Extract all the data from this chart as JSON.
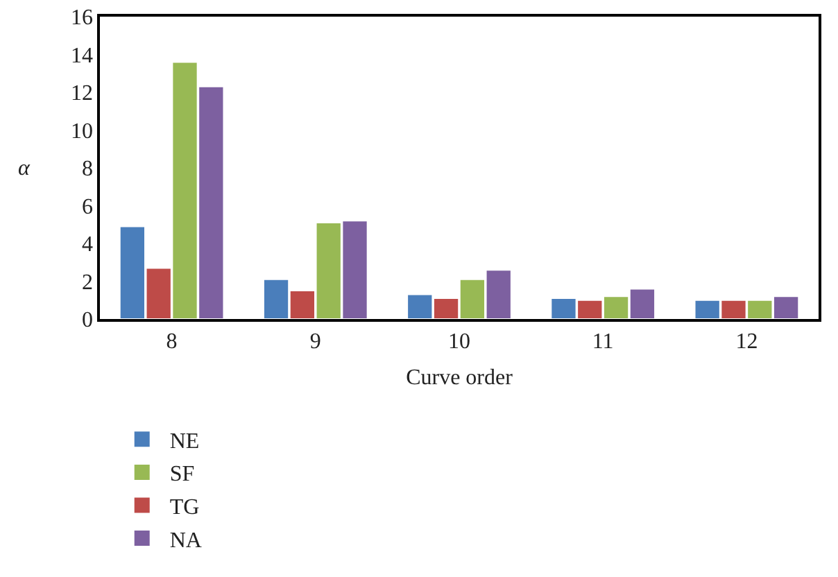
{
  "chart_data": {
    "type": "bar",
    "xlabel": "Curve order",
    "ylabel": "α",
    "categories": [
      "8",
      "9",
      "10",
      "11",
      "12"
    ],
    "series": [
      {
        "name": "NE",
        "color": "#4a7ebb",
        "values": [
          4.9,
          2.1,
          1.3,
          1.1,
          1.0
        ]
      },
      {
        "name": "TG",
        "color": "#be4b48",
        "values": [
          2.7,
          1.5,
          1.1,
          1.0,
          1.0
        ]
      },
      {
        "name": "SF",
        "color": "#98b954",
        "values": [
          13.6,
          5.1,
          2.1,
          1.2,
          1.0
        ]
      },
      {
        "name": "NA",
        "color": "#7d60a0",
        "values": [
          12.3,
          5.2,
          2.6,
          1.6,
          1.2
        ]
      }
    ],
    "ylim": [
      0,
      16
    ],
    "yticks": [
      0,
      2,
      4,
      6,
      8,
      10,
      12,
      14,
      16
    ],
    "grid": false,
    "legend": "bottom"
  }
}
